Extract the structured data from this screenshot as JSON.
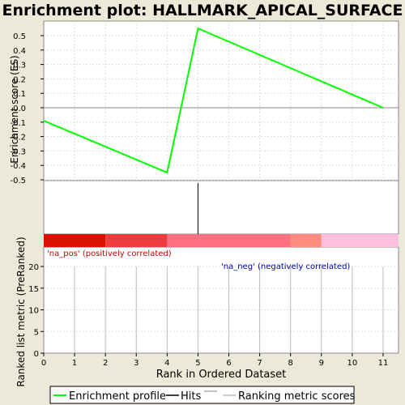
{
  "title": "Enrichment plot: HALLMARK_APICAL_SURFACE",
  "chart_data": [
    {
      "type": "line",
      "name": "enrichment-profile",
      "ylabel": "Enrichment score (ES)",
      "ylim": [
        -0.5,
        0.6
      ],
      "yticks": [
        0.5,
        0.4,
        0.3,
        0.2,
        0.1,
        0.0,
        -0.1,
        -0.2,
        -0.3,
        -0.4,
        -0.5
      ],
      "ytick_labels": [
        "0.5",
        "0.4",
        "0.3",
        "0.2",
        "0.1",
        "0.0",
        "-0.1",
        "-0.2",
        "-0.3",
        "-0.4",
        "-0.5"
      ],
      "xlim": [
        0,
        11.5
      ],
      "x": [
        0,
        4,
        5,
        11
      ],
      "y": [
        -0.09,
        -0.45,
        0.55,
        0.0
      ],
      "line_color": "#00ff00",
      "zero_line": true,
      "grid": true
    },
    {
      "type": "hits",
      "name": "hits",
      "hit_positions": [
        5
      ],
      "heatmap_segments": [
        {
          "from": 0,
          "to": 2,
          "color": "#dd1100"
        },
        {
          "from": 2,
          "to": 4,
          "color": "#ee3d3d"
        },
        {
          "from": 4,
          "to": 8,
          "color": "#ff7080"
        },
        {
          "from": 8,
          "to": 9,
          "color": "#ff8a80"
        },
        {
          "from": 9,
          "to": 11.5,
          "color": "#ffc0e0"
        }
      ]
    },
    {
      "type": "bar",
      "name": "ranked-list-metric",
      "ylabel": "Ranked list metric (PreRanked)",
      "xlabel": "Rank in Ordered Dataset",
      "ylim": [
        0,
        22
      ],
      "yticks": [
        0,
        5,
        10,
        15,
        20
      ],
      "ytick_labels": [
        "0",
        "5",
        "10",
        "15",
        "20"
      ],
      "xlim": [
        0,
        11.5
      ],
      "xticks": [
        0,
        1,
        2,
        3,
        4,
        5,
        6,
        7,
        8,
        9,
        10,
        11
      ],
      "xtick_labels": [
        "0",
        "1",
        "2",
        "3",
        "4",
        "5",
        "6",
        "7",
        "8",
        "9",
        "10",
        "11"
      ],
      "x": [
        1,
        2,
        3,
        4,
        5,
        6,
        7,
        8,
        9,
        10,
        11
      ],
      "values": [
        20,
        20,
        20,
        20,
        20,
        20,
        20,
        20,
        20,
        20,
        20
      ],
      "bar_color": "#bbbbbb",
      "annotations": [
        {
          "text": "'na_pos' (positively correlated)",
          "color": "#cc0000"
        },
        {
          "text": "'na_neg' (negatively correlated)",
          "color": "#0000aa"
        }
      ]
    }
  ],
  "legend": {
    "items": [
      {
        "label": "Enrichment profile",
        "color": "#00ff00"
      },
      {
        "label": "Hits",
        "color": "#000000"
      },
      {
        "label": "Ranking metric scores",
        "color": "#bbbbbb"
      }
    ]
  }
}
